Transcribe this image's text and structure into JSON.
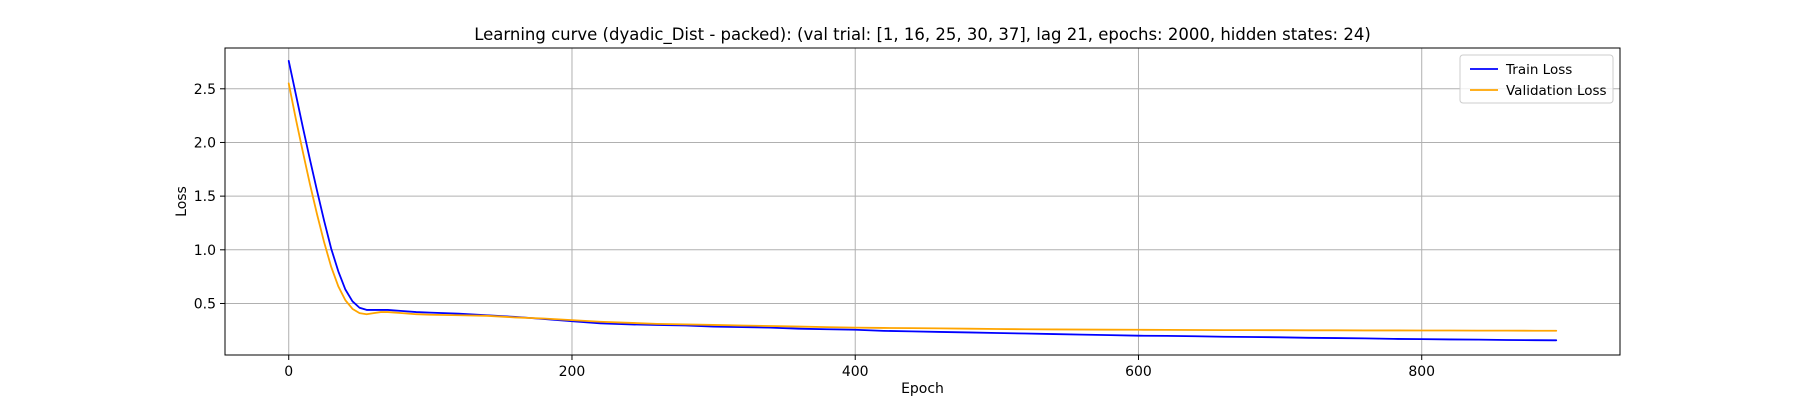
{
  "chart_data": {
    "type": "line",
    "title": "Learning curve (dyadic_Dist - packed): (val trial: [1, 16, 25, 30, 37], lag 21, epochs: 2000, hidden states: 24)",
    "xlabel": "Epoch",
    "ylabel": "Loss",
    "xlim": [
      -45,
      940
    ],
    "ylim": [
      0.02,
      2.88
    ],
    "xticks": [
      0,
      200,
      400,
      600,
      800
    ],
    "yticks": [
      0.5,
      1.0,
      1.5,
      2.0,
      2.5
    ],
    "xtick_labels": [
      "0",
      "200",
      "400",
      "600",
      "800"
    ],
    "ytick_labels": [
      "0.5",
      "1.0",
      "1.5",
      "2.0",
      "2.5"
    ],
    "grid": true,
    "legend": "top-right",
    "series": [
      {
        "name": "Train Loss",
        "color": "#0000ff",
        "x": [
          0,
          5,
          10,
          15,
          20,
          25,
          30,
          35,
          40,
          45,
          50,
          55,
          60,
          65,
          70,
          80,
          90,
          100,
          120,
          140,
          160,
          180,
          200,
          220,
          240,
          260,
          280,
          300,
          320,
          340,
          360,
          380,
          400,
          420,
          440,
          460,
          480,
          500,
          520,
          540,
          560,
          580,
          600,
          620,
          640,
          660,
          680,
          700,
          720,
          740,
          760,
          780,
          800,
          820,
          840,
          860,
          880,
          895
        ],
        "y": [
          2.76,
          2.45,
          2.14,
          1.84,
          1.55,
          1.27,
          1.01,
          0.8,
          0.63,
          0.52,
          0.46,
          0.44,
          0.44,
          0.44,
          0.44,
          0.43,
          0.42,
          0.415,
          0.405,
          0.39,
          0.375,
          0.355,
          0.335,
          0.315,
          0.305,
          0.3,
          0.295,
          0.285,
          0.28,
          0.275,
          0.265,
          0.26,
          0.255,
          0.245,
          0.24,
          0.235,
          0.23,
          0.225,
          0.22,
          0.215,
          0.21,
          0.205,
          0.2,
          0.198,
          0.195,
          0.19,
          0.188,
          0.185,
          0.18,
          0.178,
          0.175,
          0.17,
          0.168,
          0.165,
          0.163,
          0.16,
          0.158,
          0.157
        ]
      },
      {
        "name": "Validation Loss",
        "color": "#ffa500",
        "x": [
          0,
          5,
          10,
          15,
          20,
          25,
          30,
          35,
          40,
          45,
          50,
          55,
          60,
          65,
          70,
          80,
          90,
          100,
          120,
          140,
          160,
          180,
          200,
          220,
          240,
          260,
          280,
          300,
          320,
          340,
          360,
          380,
          400,
          420,
          440,
          460,
          480,
          500,
          520,
          540,
          560,
          580,
          600,
          620,
          640,
          660,
          680,
          700,
          720,
          740,
          760,
          780,
          800,
          820,
          840,
          860,
          880,
          895
        ],
        "y": [
          2.55,
          2.22,
          1.91,
          1.61,
          1.33,
          1.07,
          0.84,
          0.66,
          0.53,
          0.45,
          0.41,
          0.4,
          0.41,
          0.42,
          0.42,
          0.41,
          0.4,
          0.395,
          0.39,
          0.385,
          0.37,
          0.36,
          0.345,
          0.33,
          0.32,
          0.31,
          0.305,
          0.3,
          0.295,
          0.29,
          0.285,
          0.28,
          0.275,
          0.272,
          0.27,
          0.268,
          0.265,
          0.262,
          0.26,
          0.258,
          0.257,
          0.256,
          0.255,
          0.254,
          0.253,
          0.252,
          0.252,
          0.251,
          0.25,
          0.25,
          0.249,
          0.249,
          0.248,
          0.248,
          0.247,
          0.247,
          0.246,
          0.246
        ]
      }
    ]
  }
}
